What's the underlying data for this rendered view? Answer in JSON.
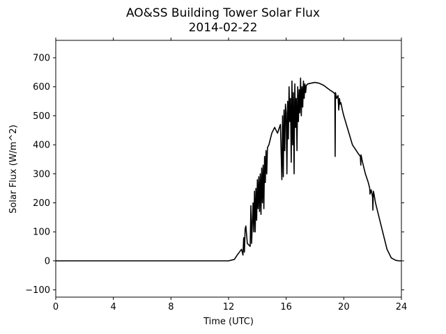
{
  "chart_data": {
    "type": "line",
    "title": "AO&SS Building Tower Solar Flux",
    "subtitle": "2014-02-22",
    "xlabel": "Time (UTC)",
    "ylabel": "Solar Flux (W/m^2)",
    "xlim": [
      0,
      24
    ],
    "ylim": [
      -125,
      760
    ],
    "xticks": [
      0,
      4,
      8,
      12,
      16,
      20,
      24
    ],
    "yticks": [
      -100,
      0,
      100,
      200,
      300,
      400,
      500,
      600,
      700
    ],
    "grid": false,
    "line_color": "#000000",
    "series": [
      {
        "x": [
          0,
          4,
          8,
          12,
          12.4,
          12.6,
          12.9,
          13.0,
          13.05,
          13.1,
          13.15,
          13.2,
          13.3,
          13.4,
          13.5,
          13.55,
          13.6,
          13.7,
          13.75,
          13.8,
          13.85,
          13.9,
          13.95,
          14.0,
          14.05,
          14.1,
          14.15,
          14.2,
          14.25,
          14.3,
          14.35,
          14.4,
          14.45,
          14.5,
          14.55,
          14.6,
          14.65,
          14.7,
          14.8,
          14.9,
          15.0,
          15.2,
          15.4,
          15.6,
          15.7,
          15.75,
          15.8,
          15.85,
          15.9,
          15.95,
          16.0,
          16.05,
          16.1,
          16.15,
          16.2,
          16.25,
          16.3,
          16.35,
          16.4,
          16.45,
          16.5,
          16.55,
          16.6,
          16.65,
          16.7,
          16.75,
          16.8,
          16.85,
          16.9,
          16.95,
          17.0,
          17.05,
          17.1,
          17.15,
          17.2,
          17.25,
          17.3,
          17.35,
          17.4,
          17.5,
          17.7,
          18.0,
          18.3,
          18.6,
          19.0,
          19.3,
          19.38,
          19.4,
          19.42,
          19.5,
          19.6,
          19.65,
          19.7,
          19.75,
          19.8,
          19.9,
          20.0,
          20.3,
          20.6,
          21.0,
          21.15,
          21.18,
          21.2,
          21.3,
          21.5,
          21.7,
          21.8,
          21.82,
          21.9,
          22.0,
          22.02,
          22.05,
          22.1,
          22.2,
          22.4,
          22.7,
          23.0,
          23.3,
          23.6,
          23.8,
          24.0
        ],
        "values": [
          0,
          0,
          0,
          0,
          5,
          20,
          40,
          20,
          80,
          30,
          110,
          120,
          60,
          55,
          50,
          190,
          60,
          200,
          100,
          240,
          100,
          250,
          140,
          280,
          180,
          290,
          170,
          300,
          160,
          320,
          200,
          330,
          180,
          360,
          270,
          380,
          300,
          390,
          400,
          420,
          440,
          460,
          440,
          470,
          280,
          500,
          290,
          520,
          380,
          540,
          510,
          300,
          550,
          420,
          600,
          480,
          560,
          340,
          620,
          400,
          580,
          300,
          610,
          460,
          560,
          380,
          600,
          480,
          590,
          510,
          630,
          500,
          600,
          530,
          620,
          560,
          610,
          580,
          605,
          610,
          612,
          615,
          612,
          605,
          590,
          580,
          575,
          360,
          580,
          560,
          570,
          520,
          560,
          540,
          545,
          520,
          500,
          450,
          400,
          370,
          360,
          330,
          365,
          340,
          300,
          270,
          250,
          230,
          245,
          220,
          175,
          240,
          230,
          200,
          160,
          100,
          40,
          10,
          2,
          0,
          0
        ]
      }
    ]
  }
}
